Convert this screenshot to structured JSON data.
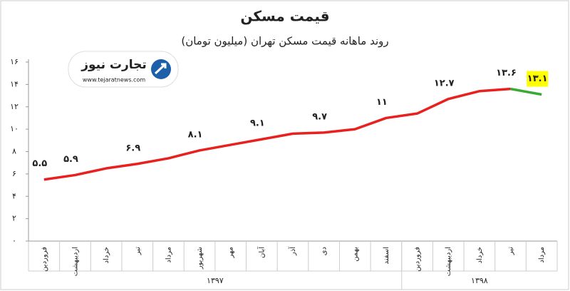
{
  "chart_data": {
    "type": "line",
    "title": "قیمت مسکن",
    "subtitle": "روند ماهانه قیمت مسکن تهران (میلیون تومان)",
    "logo": {
      "text": "تجارت نیوز",
      "url": "www.tejaratnews.com"
    },
    "categories": [
      "فروردین",
      "اردیبهشت",
      "خرداد",
      "تیر",
      "مرداد",
      "شهریور",
      "مهر",
      "آبان",
      "آذر",
      "دی",
      "بهمن",
      "اسفند",
      "فروردین",
      "اردیبهشت",
      "خرداد",
      "تیر",
      "مرداد"
    ],
    "groups": [
      {
        "label": "۱۳۹۷",
        "count": 12
      },
      {
        "label": "۱۳۹۸",
        "count": 5
      }
    ],
    "series": [
      {
        "color": "#e8201e",
        "values": [
          5.5,
          5.9,
          6.5,
          6.9,
          7.4,
          8.1,
          8.6,
          9.1,
          9.6,
          9.7,
          10.0,
          11,
          11.4,
          12.7,
          13.4,
          13.6,
          null
        ],
        "value_labels": [
          "۵.۵",
          "۵.۹",
          null,
          "۶.۹",
          null,
          "۸.۱",
          null,
          "۹.۱",
          null,
          "۹.۷",
          null,
          "۱۱",
          null,
          "۱۲.۷",
          null,
          "۱۳.۶",
          null
        ]
      },
      {
        "color": "#3aaa35",
        "values": [
          null,
          null,
          null,
          null,
          null,
          null,
          null,
          null,
          null,
          null,
          null,
          null,
          null,
          null,
          null,
          13.6,
          13.1
        ],
        "value_labels": [
          null,
          null,
          null,
          null,
          null,
          null,
          null,
          null,
          null,
          null,
          null,
          null,
          null,
          null,
          null,
          null,
          "۱۳.۱"
        ],
        "label_background": "#ffff00"
      }
    ],
    "ylim": [
      0,
      16
    ],
    "yticks": [
      {
        "value": 0,
        "label": "۰"
      },
      {
        "value": 2,
        "label": "۲"
      },
      {
        "value": 4,
        "label": "۴"
      },
      {
        "value": 6,
        "label": "۶"
      },
      {
        "value": 8,
        "label": "۸"
      },
      {
        "value": 10,
        "label": "۱۰"
      },
      {
        "value": 12,
        "label": "۱۲"
      },
      {
        "value": 14,
        "label": "۱۴"
      },
      {
        "value": 16,
        "label": "۱۶"
      }
    ],
    "grid": false
  }
}
